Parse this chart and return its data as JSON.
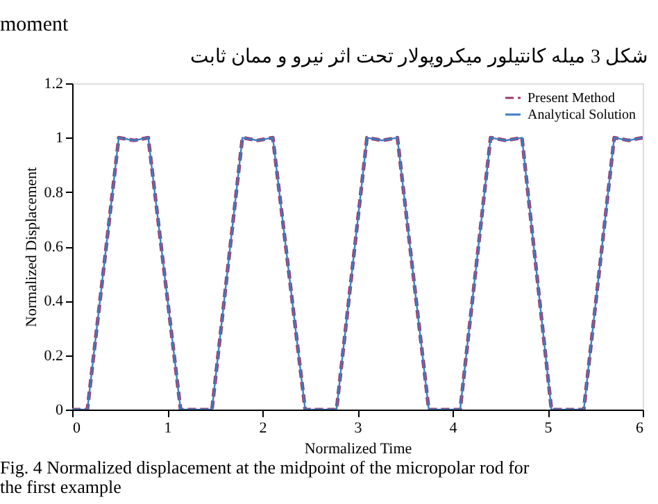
{
  "chart_data": {
    "type": "line",
    "xlabel": "Normalized Time",
    "ylabel": "Normalized Displacement",
    "x": [
      0,
      0.16,
      0.49,
      0.65,
      0.8,
      1.14,
      1.47,
      1.79,
      1.95,
      2.11,
      2.45,
      2.78,
      3.1,
      3.26,
      3.42,
      3.75,
      4.08,
      4.4,
      4.56,
      4.73,
      5.04,
      5.38,
      5.7,
      5.85,
      6
    ],
    "series": [
      {
        "name": "Present Method",
        "color": "#9b3b6b",
        "line_style": "dashed",
        "values": [
          0,
          0,
          1,
          0.99,
          1,
          0,
          0,
          1,
          0.99,
          1,
          0,
          0,
          1,
          0.99,
          1,
          0,
          0,
          1,
          0.99,
          1,
          0,
          0,
          1,
          0.99,
          1
        ]
      },
      {
        "name": "Analytical Solution",
        "color": "#3a7fc4",
        "line_style": "solid",
        "values": [
          0,
          0,
          1,
          0.99,
          1,
          0,
          0,
          1,
          0.99,
          1,
          0,
          0,
          1,
          0.99,
          1,
          0,
          0,
          1,
          0.99,
          1,
          0,
          0,
          1,
          0.99,
          1
        ]
      }
    ],
    "xlim": [
      0,
      6
    ],
    "xticks": [
      0,
      1,
      2,
      3,
      4,
      5,
      6
    ],
    "ylim": [
      0,
      1.2
    ],
    "yticks": [
      {
        "value": 0,
        "label": "0"
      },
      0.2,
      0.4,
      0.6,
      0.8,
      {
        "value": 1,
        "label": "1"
      },
      1.2
    ],
    "grid": false,
    "legend": "top right",
    "annotations": [
      "moment",
      "شکل 3 میله کانتیلور میکروپولار تحت اثر نیرو و ممان ثابت",
      "Fig. 4 Normalized displacement at the midpoint of the micropolar rod for the first example"
    ]
  }
}
